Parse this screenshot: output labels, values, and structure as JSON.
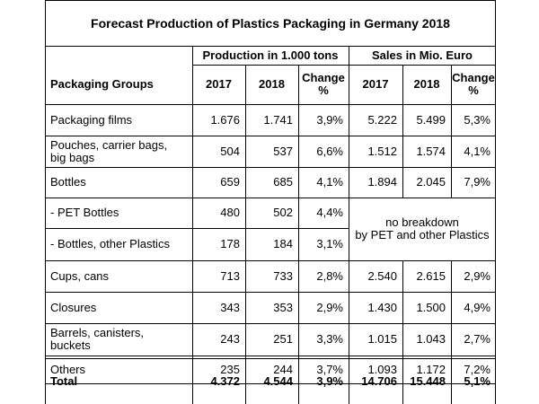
{
  "title": "Forecast Production of Plastics Packaging in Germany 2018",
  "group_headers": {
    "production": "Production in 1.000 tons",
    "sales": "Sales in Mio. Euro"
  },
  "column_headers": {
    "packaging_groups": "Packaging Groups",
    "prod_2017": "2017",
    "prod_2018": "2018",
    "prod_change": "Change\n%",
    "sales_2017": "2017",
    "sales_2018": "2018",
    "sales_change": "Change\n%"
  },
  "rows": [
    {
      "group": "Packaging films",
      "prod_2017": "1.676",
      "prod_2018": "1.741",
      "prod_change": "3,9%",
      "sales_2017": "5.222",
      "sales_2018": "5.499",
      "sales_change": "5,3%"
    },
    {
      "group": "Pouches, carrier bags,\nbig bags",
      "prod_2017": "504",
      "prod_2018": "537",
      "prod_change": "6,6%",
      "sales_2017": "1.512",
      "sales_2018": "1.574",
      "sales_change": "4,1%"
    },
    {
      "group": "Bottles",
      "prod_2017": "659",
      "prod_2018": "685",
      "prod_change": "4,1%",
      "sales_2017": "1.894",
      "sales_2018": "2.045",
      "sales_change": "7,9%"
    },
    {
      "group": "- PET Bottles",
      "prod_2017": "480",
      "prod_2018": "502",
      "prod_change": "4,4%"
    },
    {
      "group": "- Bottles, other Plastics",
      "prod_2017": "178",
      "prod_2018": "184",
      "prod_change": "3,1%"
    },
    {
      "group": "Cups, cans",
      "prod_2017": "713",
      "prod_2018": "733",
      "prod_change": "2,8%",
      "sales_2017": "2.540",
      "sales_2018": "2.615",
      "sales_change": "2,9%"
    },
    {
      "group": "Closures",
      "prod_2017": "343",
      "prod_2018": "353",
      "prod_change": "2,9%",
      "sales_2017": "1.430",
      "sales_2018": "1.500",
      "sales_change": "4,9%"
    },
    {
      "group": "Barrels, canisters,\nbuckets",
      "prod_2017": "243",
      "prod_2018": "251",
      "prod_change": "3,3%",
      "sales_2017": "1.015",
      "sales_2018": "1.043",
      "sales_change": "2,7%"
    },
    {
      "group": "Others",
      "prod_2017": "235",
      "prod_2018": "244",
      "prod_change": "3,7%",
      "sales_2017": "1.093",
      "sales_2018": "1.172",
      "sales_change": "7,2%"
    },
    {
      "group": "Total",
      "prod_2017": "4.372",
      "prod_2018": "4.544",
      "prod_change": "3,9%",
      "sales_2017": "14.706",
      "sales_2018": "15.448",
      "sales_change": "5,1%"
    }
  ],
  "merged_note": "no breakdown\nby PET and other Plastics"
}
